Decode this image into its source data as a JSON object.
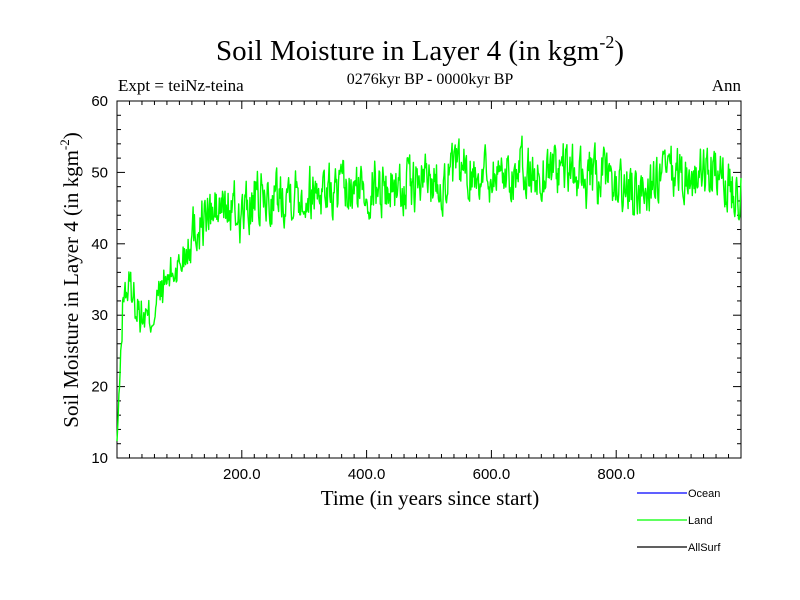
{
  "chart_data": {
    "type": "line",
    "title": "Soil Moisture in Layer 4 (in kgm",
    "title_sup": "-2",
    "title_close": ")",
    "subtitle": "0276kyr BP - 0000kyr BP",
    "left_note": "Expt = teiNz-teina",
    "right_note": "Ann",
    "xlabel": "Time (in years since start)",
    "ylabel": "Soil Moisture in Layer 4 (in kgm",
    "ylabel_sup": "-2",
    "ylabel_close": ")",
    "xlim": [
      0,
      1000
    ],
    "ylim": [
      10,
      60
    ],
    "x_tick_labels": [
      "200.0",
      "400.0",
      "600.0",
      "800.0"
    ],
    "x_tick_values": [
      200,
      400,
      600,
      800
    ],
    "y_tick_labels": [
      "10",
      "20",
      "30",
      "40",
      "50",
      "60"
    ],
    "y_tick_values": [
      10,
      20,
      30,
      40,
      50,
      60
    ],
    "legend": [
      {
        "name": "Ocean",
        "color": "#0000ff"
      },
      {
        "name": "Land",
        "color": "#00ff00"
      },
      {
        "name": "AllSurf",
        "color": "#000000"
      }
    ],
    "series": [
      {
        "name": "Land",
        "color": "#00ff00",
        "x": [
          0,
          5,
          10,
          20,
          30,
          40,
          50,
          60,
          75,
          90,
          100,
          115,
          130,
          150,
          175,
          200,
          225,
          250,
          275,
          300,
          325,
          350,
          375,
          400,
          425,
          450,
          475,
          500,
          525,
          550,
          575,
          600,
          625,
          650,
          675,
          700,
          725,
          750,
          775,
          800,
          825,
          850,
          875,
          900,
          925,
          950,
          975,
          1000
        ],
        "values": [
          12,
          22,
          33,
          34,
          32,
          30,
          29,
          31,
          34,
          36,
          37,
          41,
          43,
          44,
          45,
          44,
          46,
          46,
          48,
          47,
          48,
          47,
          47,
          48,
          48,
          48,
          48,
          49,
          49,
          50,
          50,
          50,
          50,
          50,
          49,
          51,
          50,
          49,
          49,
          48,
          47,
          48,
          49,
          50,
          49,
          50,
          48,
          48
        ]
      }
    ]
  }
}
